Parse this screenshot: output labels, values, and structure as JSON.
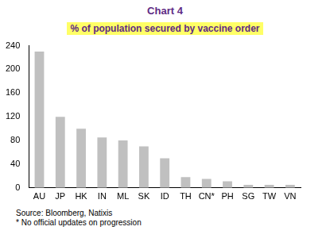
{
  "chart_data": {
    "type": "bar",
    "title": "Chart 4",
    "subtitle": "% of population secured by vaccine order",
    "annotations": [
      "Source: Bloomberg, Natixis",
      "* No official updates on progression"
    ],
    "categories": [
      "AU",
      "JP",
      "HK",
      "IN",
      "ML",
      "SK",
      "ID",
      "TH",
      "CN*",
      "PH",
      "SG",
      "TW",
      "VN"
    ],
    "values": [
      230,
      120,
      100,
      85,
      80,
      70,
      50,
      18,
      15,
      11,
      5,
      5,
      5
    ],
    "color": "#c0c0c0",
    "ylim": [
      0,
      240
    ],
    "yticks": [
      0,
      40,
      80,
      120,
      160,
      200,
      240
    ],
    "grid": false
  }
}
